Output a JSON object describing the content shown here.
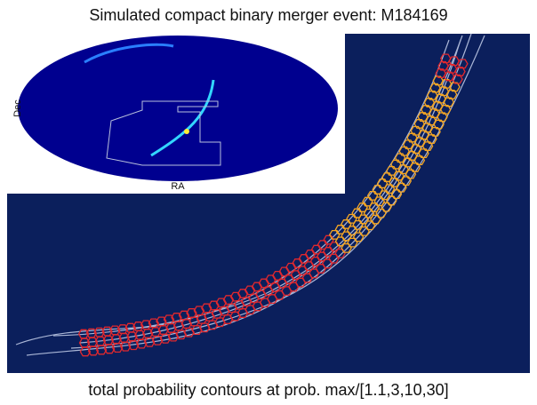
{
  "title": "Simulated compact binary merger event: M184169",
  "caption": "total probability contours at prob. max/[1.1,3,10,30]",
  "inset": {
    "y_label": "Dec",
    "x_label": "RA"
  }
}
